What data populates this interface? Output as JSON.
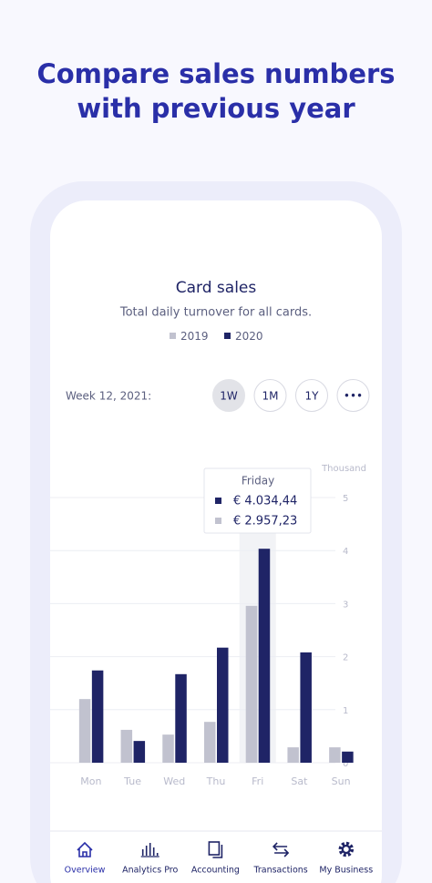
{
  "headline": [
    "Compare sales numbers",
    "with previous year"
  ],
  "controls": {
    "week_label": "Week 12, 2021:",
    "periods": [
      {
        "label": "1W",
        "active": true
      },
      {
        "label": "1M",
        "active": false
      },
      {
        "label": "1Y",
        "active": false
      },
      {
        "label": "•••",
        "active": false
      }
    ]
  },
  "chart_data": {
    "type": "bar",
    "title": "Card sales",
    "subtitle": "Total daily turnover for all cards.",
    "categories": [
      "Mon",
      "Tue",
      "Wed",
      "Thu",
      "Fri",
      "Sat",
      "Sun"
    ],
    "series": [
      {
        "name": "2019",
        "color": "#c1c2cf",
        "values": [
          1.2,
          0.62,
          0.53,
          0.77,
          2.95723,
          0.29,
          0.29
        ]
      },
      {
        "name": "2020",
        "color": "#1f2466",
        "values": [
          1.74,
          0.41,
          1.67,
          2.17,
          4.03444,
          2.08,
          0.21
        ]
      }
    ],
    "ylim": [
      0,
      5
    ],
    "yticks": [
      0,
      1,
      2,
      3,
      4,
      5
    ],
    "y_label": "Thousand",
    "grid": true,
    "tooltip": {
      "title": "Friday",
      "labels": [
        "€ 4.034,44",
        "€ 2.957,23"
      ]
    }
  },
  "nav": [
    {
      "label": "Overview",
      "active": true
    },
    {
      "label": "Analytics Pro",
      "active": false
    },
    {
      "label": "Accounting",
      "active": false
    },
    {
      "label": "Transactions",
      "active": false
    },
    {
      "label": "My Business",
      "active": false
    }
  ]
}
